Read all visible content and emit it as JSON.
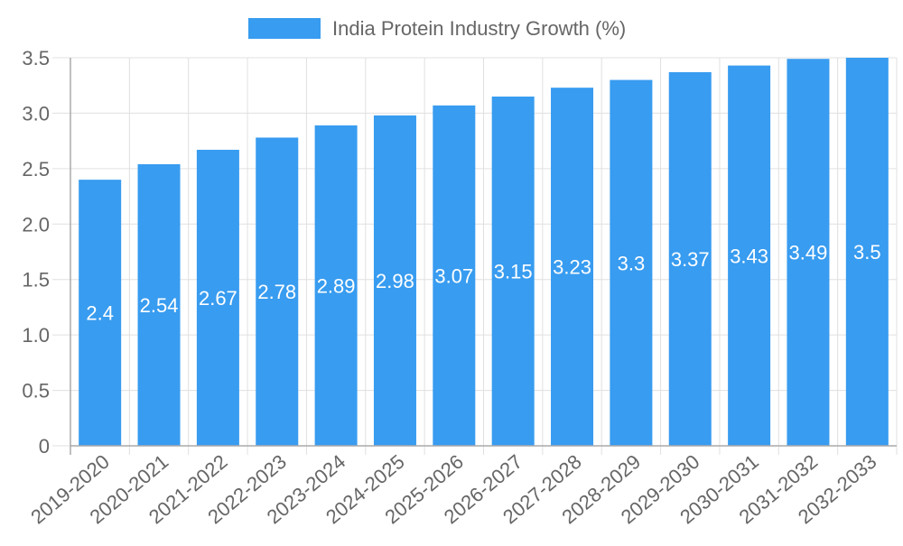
{
  "chart_data": {
    "type": "bar",
    "title": "",
    "legend": {
      "label": "India Protein Industry Growth (%)",
      "placement": "top-center"
    },
    "categories": [
      "2019-2020",
      "2020-2021",
      "2021-2022",
      "2022-2023",
      "2023-2024",
      "2024-2025",
      "2025-2026",
      "2026-2027",
      "2027-2028",
      "2028-2029",
      "2029-2030",
      "2030-2031",
      "2031-2032",
      "2032-2033"
    ],
    "series": [
      {
        "name": "India Protein Industry Growth (%)",
        "values": [
          2.4,
          2.54,
          2.67,
          2.78,
          2.89,
          2.98,
          3.07,
          3.15,
          3.23,
          3.3,
          3.37,
          3.43,
          3.49,
          3.5
        ],
        "color": "#389cf0"
      }
    ],
    "data_labels": [
      "2.4",
      "2.54",
      "2.67",
      "2.78",
      "2.89",
      "2.98",
      "3.07",
      "3.15",
      "3.23",
      "3.3",
      "3.37",
      "3.43",
      "3.49",
      "3.5"
    ],
    "yticks": [
      "0",
      "0.5",
      "1.0",
      "1.5",
      "2.0",
      "2.5",
      "3.0",
      "3.5"
    ],
    "ylim": [
      0,
      3.5
    ],
    "xlabel": "",
    "ylabel": "",
    "grid": true
  }
}
